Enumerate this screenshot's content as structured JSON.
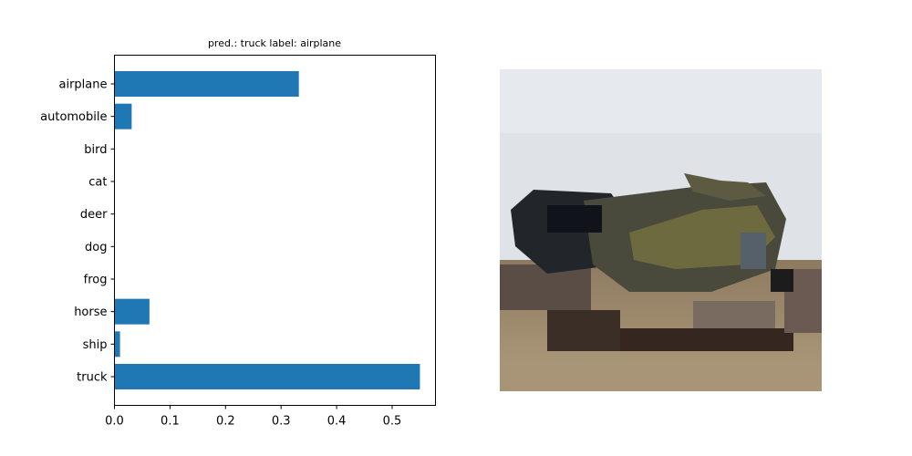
{
  "chart_data": {
    "type": "bar",
    "orientation": "horizontal",
    "title": "pred.: truck   label: airplane",
    "categories": [
      "airplane",
      "automobile",
      "bird",
      "cat",
      "deer",
      "dog",
      "frog",
      "horse",
      "ship",
      "truck"
    ],
    "values": [
      0.332,
      0.031,
      0.0,
      0.0,
      0.0,
      0.0,
      0.0,
      0.063,
      0.01,
      0.55
    ],
    "xlim": [
      0,
      0.578
    ],
    "xticks": [
      0.0,
      0.1,
      0.2,
      0.3,
      0.4,
      0.5
    ],
    "xtick_labels": [
      "0.0",
      "0.1",
      "0.2",
      "0.3",
      "0.4",
      "0.5"
    ],
    "bar_color": "#1f77b4",
    "grid": false,
    "legend": "none"
  },
  "image_panel": {
    "subject": "low-resolution photo of an airplane over brown ground under a pale sky",
    "palette": {
      "sky": "#dfe3e8",
      "fuselage_dark": "#1f2226",
      "body_olive": "#6e6a40",
      "ground": "#a89476",
      "shadow": "#3a2e27"
    }
  }
}
